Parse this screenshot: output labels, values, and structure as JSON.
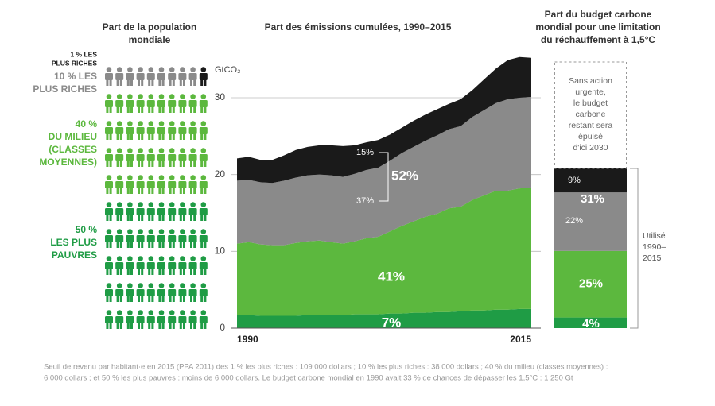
{
  "population": {
    "title": [
      "Part de la population",
      "mondiale"
    ],
    "groups": [
      {
        "label": [
          "10 % LES",
          "PLUS RICHES"
        ],
        "color": "#8a8a8a",
        "count": 9
      },
      {
        "label": [
          "1 % LES",
          "PLUS RICHES"
        ],
        "color": "#1a1a1a",
        "count": 1
      },
      {
        "label": [
          "40 %",
          "DU MILIEU",
          "(CLASSES",
          "MOYENNES)"
        ],
        "color": "#5cb83e",
        "count": 40
      },
      {
        "label": [
          "50 %",
          "LES PLUS",
          "PAUVRES"
        ],
        "color": "#1f9c45",
        "count": 50
      }
    ]
  },
  "chart_data": [
    {
      "type": "area",
      "title": "Part des émissions cumulées, 1990–2015",
      "y_label": "GtCO₂",
      "x": [
        1990,
        1991,
        1992,
        1993,
        1994,
        1995,
        1996,
        1997,
        1998,
        1999,
        2000,
        2001,
        2002,
        2003,
        2004,
        2005,
        2006,
        2007,
        2008,
        2009,
        2010,
        2011,
        2012,
        2013,
        2014,
        2015
      ],
      "xlim": [
        1990,
        2015
      ],
      "xticks": [
        1990,
        2015
      ],
      "ylim": [
        0,
        36
      ],
      "yticks": [
        0,
        10,
        20,
        30
      ],
      "grid": true,
      "series": [
        {
          "color": "#1f9c45",
          "values": [
            1.7,
            1.7,
            1.6,
            1.6,
            1.6,
            1.6,
            1.7,
            1.7,
            1.7,
            1.7,
            1.8,
            1.8,
            1.8,
            1.9,
            1.9,
            2.0,
            2.0,
            2.1,
            2.1,
            2.2,
            2.3,
            2.3,
            2.4,
            2.4,
            2.5,
            2.5
          ]
        },
        {
          "color": "#5cb83e",
          "values": [
            9.3,
            9.5,
            9.3,
            9.2,
            9.2,
            9.5,
            9.6,
            9.7,
            9.5,
            9.3,
            9.5,
            9.9,
            10.1,
            10.7,
            11.4,
            11.9,
            12.5,
            12.8,
            13.5,
            13.6,
            14.4,
            15.0,
            15.5,
            15.5,
            15.7,
            15.8
          ]
        },
        {
          "color": "#8a8a8a",
          "values": [
            8.2,
            8.1,
            8.1,
            8.1,
            8.4,
            8.5,
            8.6,
            8.6,
            8.7,
            8.7,
            8.8,
            8.9,
            9.0,
            9.2,
            9.5,
            9.7,
            9.9,
            10.2,
            10.3,
            10.5,
            10.8,
            11.1,
            11.4,
            11.9,
            11.8,
            11.8
          ]
        },
        {
          "color": "#1a1a1a",
          "values": [
            2.9,
            3.0,
            2.9,
            3.0,
            3.3,
            3.6,
            3.7,
            3.8,
            3.9,
            4.0,
            3.7,
            3.6,
            3.6,
            3.4,
            3.3,
            3.4,
            3.4,
            3.4,
            3.3,
            3.5,
            3.5,
            4.0,
            4.5,
            5.1,
            5.3,
            5.1
          ]
        }
      ],
      "annotations": [
        "7%",
        "41%",
        "52%",
        "15%",
        "37%"
      ]
    },
    {
      "type": "stacked_bar",
      "title": [
        "Part du budget carbone",
        "mondial pour une limitation",
        "du réchauffement à 1,5°C"
      ],
      "ylim": [
        0,
        100
      ],
      "values": [
        4,
        25,
        22,
        9
      ],
      "value_labels": [
        "4%",
        "25%",
        "22%",
        "9%"
      ],
      "colors": [
        "#1f9c45",
        "#5cb83e",
        "#8a8a8a",
        "#1a1a1a"
      ],
      "annotation": "31%",
      "note": [
        "Sans action",
        "urgente,",
        "le budget",
        "carbone",
        "restant sera",
        "épuisé",
        "d'ici 2030"
      ],
      "used_label": [
        "Utilisé",
        "1990–",
        "2015"
      ]
    }
  ],
  "footnote": [
    "Seuil de revenu par habitant·e en 2015 (PPA 2011) des 1 % les plus riches : 109 000 dollars ; 10 % les plus riches : 38 000 dollars ; 40 % du milieu (classes moyennes) :",
    "6 000 dollars ; et 50 % les plus pauvres : moins de 6 000 dollars. Le budget carbone mondial en 1990 avait 33 % de chances de dépasser les 1,5°C : 1 250 Gt"
  ]
}
